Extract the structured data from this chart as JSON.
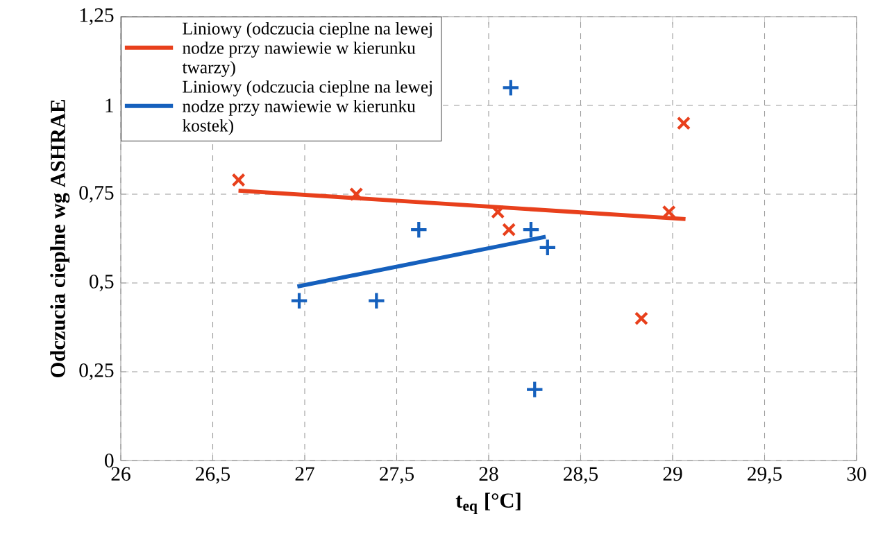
{
  "chart_data": {
    "type": "scatter",
    "xlabel": "t$_{eq}$ [°C]",
    "ylabel": "Odczucia cieplne wg ASHRAE",
    "xlim": [
      26,
      30
    ],
    "xticks": [
      26,
      {
        "value": 26.5,
        "label": "26,5"
      },
      27,
      {
        "value": 27.5,
        "label": "27,5"
      },
      28,
      {
        "value": 28.5,
        "label": "28,5"
      },
      29,
      {
        "value": 29.5,
        "label": "29,5"
      },
      30
    ],
    "ylim": [
      0,
      1.25
    ],
    "yticks": [
      0,
      {
        "value": 0.25,
        "label": "0,25"
      },
      {
        "value": 0.5,
        "label": "0,5"
      },
      {
        "value": 0.75,
        "label": "0,75"
      },
      1,
      {
        "value": 1.25,
        "label": "1,25"
      }
    ],
    "grid": true,
    "legend": "top left",
    "series": [
      {
        "marker": "cross",
        "color": "#e8401c",
        "x": [
          26.64,
          27.28,
          28.05,
          28.11,
          28.98,
          29.06,
          28.83
        ],
        "values": [
          0.79,
          0.75,
          0.7,
          0.65,
          0.7,
          0.95,
          0.4
        ]
      },
      {
        "marker": "plus",
        "color": "#1560bd",
        "x": [
          28.12,
          27.62,
          28.23,
          28.32,
          26.97,
          27.39,
          28.25
        ],
        "values": [
          1.05,
          0.65,
          0.65,
          0.6,
          0.45,
          0.45,
          0.2
        ]
      },
      {
        "type": "line",
        "name": "Liniowy (odczucia cieplne na lewej nodze przy nawiewie w kierunku twarzy)",
        "color": "#e8401c",
        "x": [
          26.64,
          29.07
        ],
        "values": [
          0.76,
          0.68
        ]
      },
      {
        "type": "line",
        "name": "Liniowy (odczucia cieplne na lewej nodze przy nawiewie w kierunku kostek)",
        "color": "#1560bd",
        "x": [
          26.96,
          28.31
        ],
        "values": [
          0.49,
          0.63
        ]
      }
    ]
  }
}
